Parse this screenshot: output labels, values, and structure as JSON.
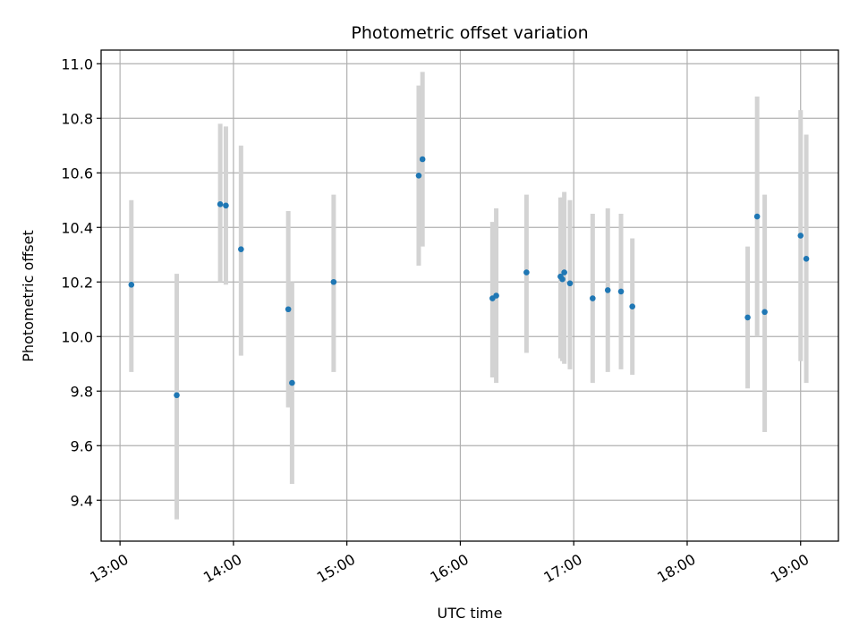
{
  "chart_data": {
    "type": "scatter",
    "title": "Photometric offset variation",
    "xlabel": "UTC time",
    "ylabel": "Photometric offset",
    "x_is_time": true,
    "xlim": [
      "12:50",
      "19:20"
    ],
    "ylim": [
      9.25,
      11.05
    ],
    "grid": true,
    "x_ticks": [
      "13:00",
      "14:00",
      "15:00",
      "16:00",
      "17:00",
      "18:00",
      "19:00"
    ],
    "y_ticks": [
      9.4,
      9.6,
      9.8,
      10.0,
      10.2,
      10.4,
      10.6,
      10.8,
      11.0
    ],
    "y_tick_labels": [
      "9.4",
      "9.6",
      "9.8",
      "10.0",
      "10.2",
      "10.4",
      "10.6",
      "10.8",
      "11.0"
    ],
    "colors": {
      "marker": "#1f77b4",
      "errorbar": "#d3d3d3",
      "grid": "#b0b0b0"
    },
    "points": [
      {
        "x": "13:06",
        "y": 10.19,
        "ylow": 9.87,
        "yhigh": 10.5
      },
      {
        "x": "13:30",
        "y": 9.785,
        "ylow": 9.33,
        "yhigh": 10.23
      },
      {
        "x": "13:53",
        "y": 10.485,
        "ylow": 10.2,
        "yhigh": 10.78
      },
      {
        "x": "13:56",
        "y": 10.48,
        "ylow": 10.19,
        "yhigh": 10.77
      },
      {
        "x": "14:04",
        "y": 10.32,
        "ylow": 9.93,
        "yhigh": 10.7
      },
      {
        "x": "14:29",
        "y": 10.1,
        "ylow": 9.74,
        "yhigh": 10.46
      },
      {
        "x": "14:31",
        "y": 9.83,
        "ylow": 9.46,
        "yhigh": 10.2
      },
      {
        "x": "14:53",
        "y": 10.2,
        "ylow": 9.87,
        "yhigh": 10.52
      },
      {
        "x": "15:38",
        "y": 10.59,
        "ylow": 10.26,
        "yhigh": 10.92
      },
      {
        "x": "15:40",
        "y": 10.65,
        "ylow": 10.33,
        "yhigh": 10.97
      },
      {
        "x": "16:17",
        "y": 10.14,
        "ylow": 9.85,
        "yhigh": 10.42
      },
      {
        "x": "16:19",
        "y": 10.15,
        "ylow": 9.83,
        "yhigh": 10.47
      },
      {
        "x": "16:35",
        "y": 10.235,
        "ylow": 9.94,
        "yhigh": 10.52
      },
      {
        "x": "16:53",
        "y": 10.22,
        "ylow": 9.92,
        "yhigh": 10.51
      },
      {
        "x": "16:54",
        "y": 10.21,
        "ylow": 9.91,
        "yhigh": 10.51
      },
      {
        "x": "16:55",
        "y": 10.235,
        "ylow": 9.9,
        "yhigh": 10.53
      },
      {
        "x": "16:58",
        "y": 10.195,
        "ylow": 9.88,
        "yhigh": 10.5
      },
      {
        "x": "17:10",
        "y": 10.14,
        "ylow": 9.83,
        "yhigh": 10.45
      },
      {
        "x": "17:18",
        "y": 10.17,
        "ylow": 9.87,
        "yhigh": 10.47
      },
      {
        "x": "17:25",
        "y": 10.165,
        "ylow": 9.88,
        "yhigh": 10.45
      },
      {
        "x": "17:31",
        "y": 10.11,
        "ylow": 9.86,
        "yhigh": 10.36
      },
      {
        "x": "18:32",
        "y": 10.07,
        "ylow": 9.81,
        "yhigh": 10.33
      },
      {
        "x": "18:37",
        "y": 10.44,
        "ylow": 10.0,
        "yhigh": 10.88
      },
      {
        "x": "18:41",
        "y": 10.09,
        "ylow": 9.65,
        "yhigh": 10.52
      },
      {
        "x": "19:00",
        "y": 10.37,
        "ylow": 9.91,
        "yhigh": 10.83
      },
      {
        "x": "19:03",
        "y": 10.285,
        "ylow": 9.83,
        "yhigh": 10.74
      }
    ]
  }
}
